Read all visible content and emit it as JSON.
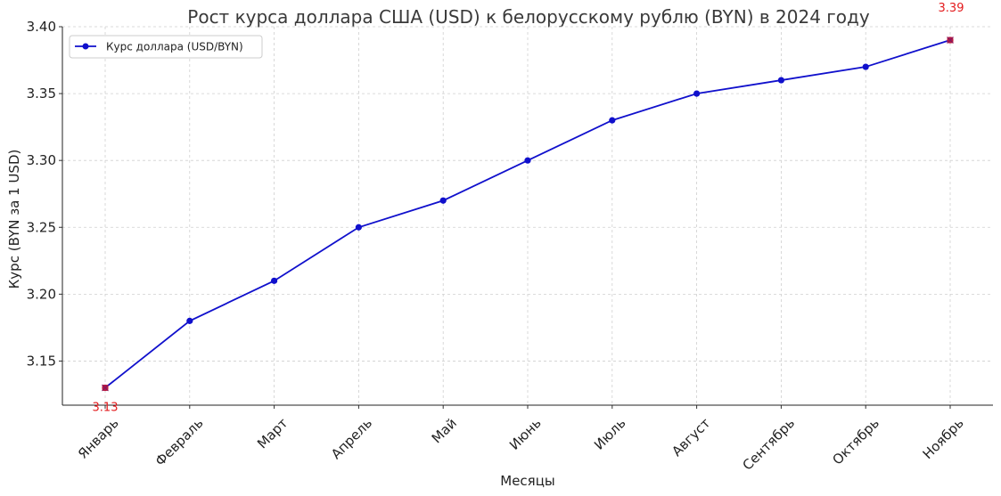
{
  "chart_data": {
    "type": "line",
    "title": "Рост курса доллара США (USD) к белорусскому рублю (BYN) в 2024 году",
    "xlabel": "Месяцы",
    "ylabel": "Курс (BYN за 1 USD)",
    "categories": [
      "Январь",
      "Февраль",
      "Март",
      "Апрель",
      "Май",
      "Июнь",
      "Июль",
      "Август",
      "Сентябрь",
      "Октябрь",
      "Ноябрь"
    ],
    "series": [
      {
        "name": "Курс доллара (USD/BYN)",
        "values": [
          3.13,
          3.18,
          3.21,
          3.25,
          3.27,
          3.3,
          3.33,
          3.35,
          3.36,
          3.37,
          3.39
        ],
        "color": "#1010cc"
      }
    ],
    "ylim": [
      3.117,
      3.4
    ],
    "yticks": [
      "3.15",
      "3.20",
      "3.25",
      "3.30",
      "3.35",
      "3.40"
    ],
    "grid": true,
    "legend_position": "top-left",
    "annotations": [
      {
        "text": "3.13",
        "category": "Январь",
        "value": 3.13,
        "placement": "below"
      },
      {
        "text": "3.39",
        "category": "Ноябрь",
        "value": 3.39,
        "placement": "above"
      }
    ],
    "annotation_color": "#e31a1c"
  }
}
